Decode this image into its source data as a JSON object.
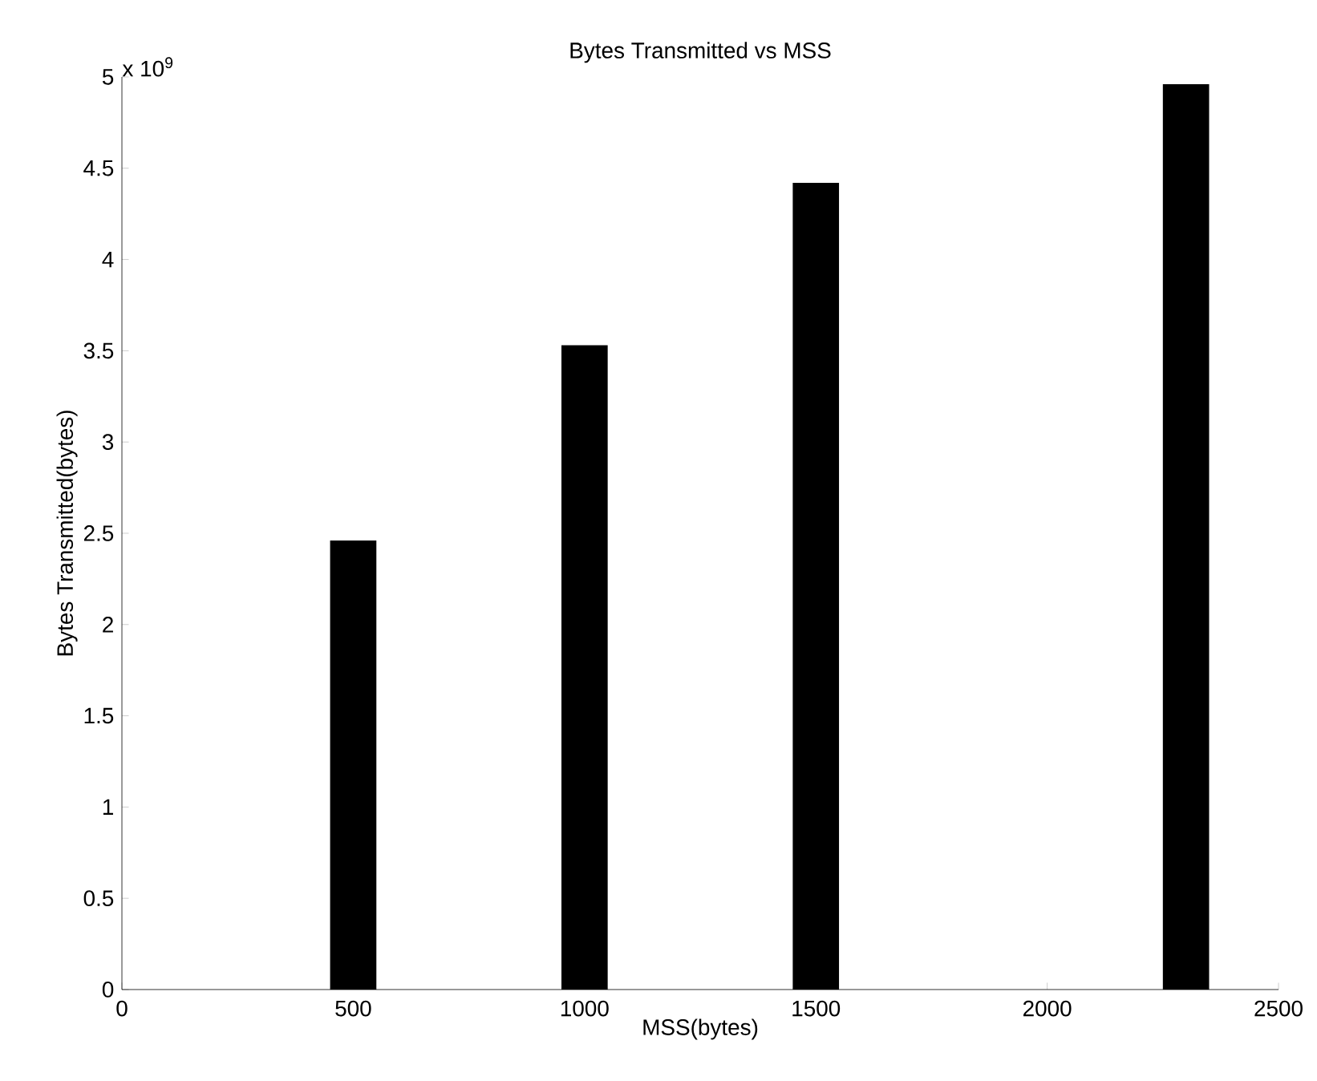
{
  "chart_data": {
    "type": "bar",
    "title": "Bytes Transmitted vs MSS",
    "xlabel": "MSS(bytes)",
    "ylabel": "Bytes Transmitted(bytes)",
    "x": [
      500,
      1000,
      1500,
      2300
    ],
    "values": [
      2.46,
      3.53,
      4.42,
      4.96
    ],
    "color": "#000000",
    "xlim": [
      0,
      2500
    ],
    "xticks": [
      0,
      500,
      1000,
      1500,
      2000,
      2500
    ],
    "ylim": [
      0,
      5
    ],
    "yticks": [
      0,
      0.5,
      1,
      1.5,
      2,
      2.5,
      3,
      3.5,
      4,
      4.5,
      5
    ],
    "annotations": [
      "x 10$^{9}$"
    ]
  }
}
